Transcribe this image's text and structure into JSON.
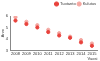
{
  "chart_data": {
    "type": "scatter",
    "x_label": "Vuosi",
    "y_label": "Arvo",
    "categories": [
      "2008",
      "2009",
      "2010",
      "2011",
      "2012",
      "2013",
      "2014",
      "2015"
    ],
    "series": [
      {
        "name": "Tuotanto",
        "color": "#e8423c",
        "marker": "circle",
        "values": [
          5.6,
          5.3,
          5.0,
          4.6,
          4.3,
          4.1,
          3.7,
          3.4
        ]
      },
      {
        "name": "Kulutus",
        "color": "#f4a6a0",
        "marker": "circle",
        "values": [
          5.9,
          5.5,
          5.2,
          4.8,
          4.5,
          4.2,
          3.9,
          3.6
        ]
      }
    ],
    "ylim": [
      3,
      6
    ],
    "yticks": [
      3,
      4,
      5,
      6
    ],
    "grid": false,
    "legend": "top-right"
  }
}
